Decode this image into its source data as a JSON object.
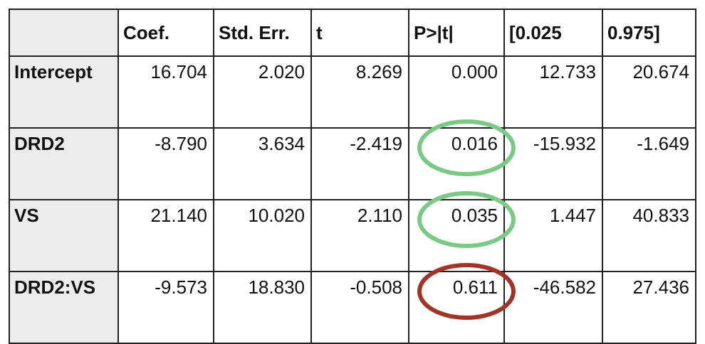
{
  "chart_data": {
    "type": "table",
    "columns": [
      "",
      "Coef.",
      "Std. Err.",
      "t",
      "P>|t|",
      "[0.025",
      "0.975]"
    ],
    "rows": [
      {
        "label": "Intercept",
        "values": [
          "16.704",
          "2.020",
          "8.269",
          "0.000",
          "12.733",
          "20.674"
        ],
        "highlight": null
      },
      {
        "label": "DRD2",
        "values": [
          "-8.790",
          "3.634",
          "-2.419",
          "0.016",
          "-15.932",
          "-1.649"
        ],
        "highlight": "green"
      },
      {
        "label": "VS",
        "values": [
          "21.140",
          "10.020",
          "2.110",
          "0.035",
          "1.447",
          "40.833"
        ],
        "highlight": "green"
      },
      {
        "label": "DRD2:VS",
        "values": [
          "-9.573",
          "18.830",
          "-0.508",
          "0.611",
          "-46.582",
          "27.436"
        ],
        "highlight": "red"
      }
    ],
    "highlight_column": "P>|t|",
    "colors": {
      "green": "#7ac985",
      "red": "#a33228",
      "label_background": "#ececec",
      "border": "#222222"
    }
  }
}
